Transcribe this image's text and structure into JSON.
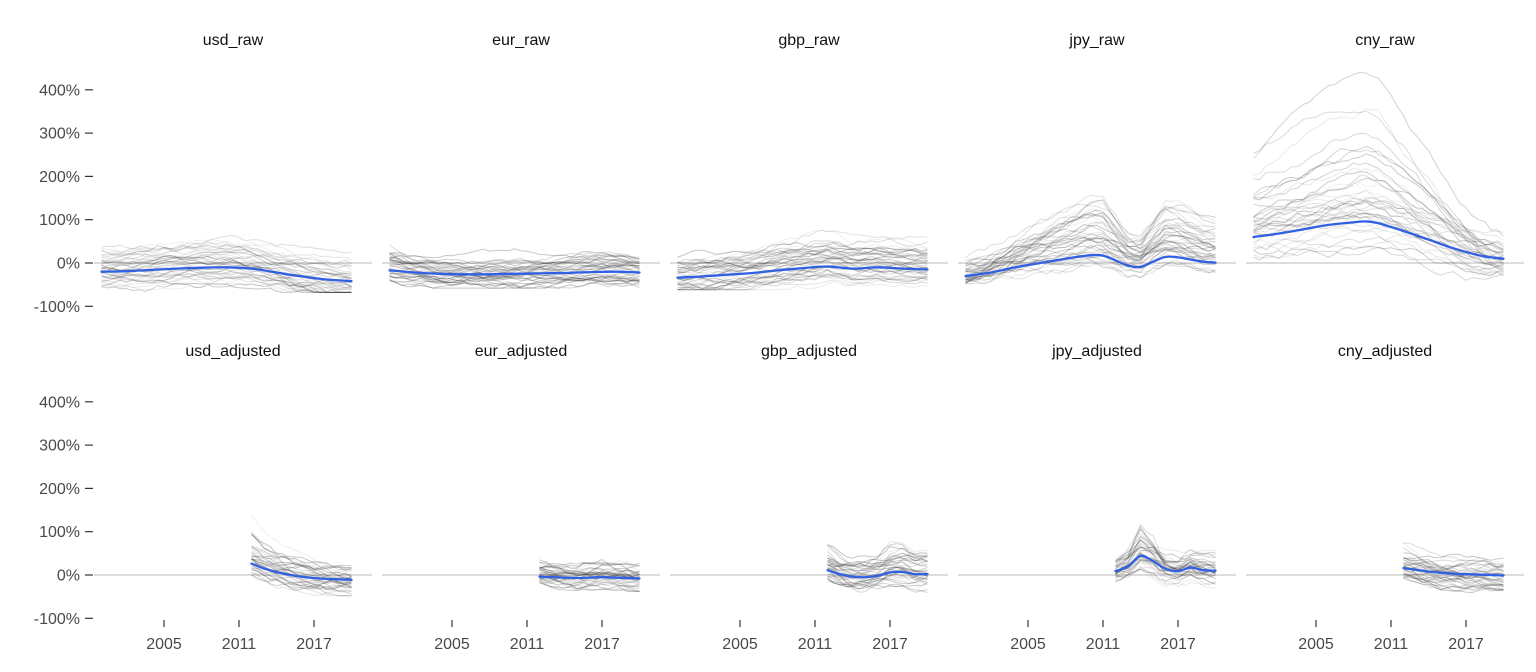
{
  "chart_data": {
    "type": "line",
    "description": "Faceted spaghetti line chart: 10 facets (2 rows x 5 cols), gray individual series with a blue trend line per facet, horizontal reference line at 0%",
    "layout": {
      "rows": 2,
      "cols": 5,
      "grid": "off",
      "legend": "none",
      "panel_background": "#ffffff"
    },
    "x_axis": {
      "domain": [
        1999.4,
        2021.6
      ],
      "ticks": [
        {
          "label": "2005",
          "year": 2005
        },
        {
          "label": "2011",
          "year": 2011
        },
        {
          "label": "2017",
          "year": 2017
        }
      ]
    },
    "y_axis": {
      "domain": [
        -104,
        462
      ],
      "unit": "%",
      "ticks": [
        {
          "label": "400%",
          "value": 400
        },
        {
          "label": "300%",
          "value": 300
        },
        {
          "label": "200%",
          "value": 200
        },
        {
          "label": "100%",
          "value": 100
        },
        {
          "label": "0%",
          "value": 0
        },
        {
          "label": "-100%",
          "value": -100
        }
      ]
    },
    "reference_line_y": 0,
    "colors": {
      "trend": "#3160E3",
      "background_lines": "#2e2e2e",
      "zero_line": "#c8c8c8",
      "axis_text": "#4a4a4a",
      "tick_mark": "#333333",
      "strip_text": "#111111"
    },
    "facets": [
      {
        "label": "usd_raw",
        "row": 0,
        "col": 0,
        "start_year": 2000,
        "end_year": 2020,
        "seed": 1077,
        "trend": [
          [
            2000,
            -20
          ],
          [
            2002,
            -19
          ],
          [
            2004,
            -16
          ],
          [
            2006,
            -13
          ],
          [
            2008,
            -11
          ],
          [
            2010,
            -10
          ],
          [
            2012,
            -13
          ],
          [
            2014,
            -22
          ],
          [
            2016,
            -31
          ],
          [
            2018,
            -38
          ],
          [
            2020,
            -42
          ]
        ],
        "band": {
          "n_lines": 40,
          "offset": 36,
          "uplift_max": 95,
          "wiggle": 7,
          "low_clamp": -68,
          "high_clamp": 134
        }
      },
      {
        "label": "eur_raw",
        "row": 0,
        "col": 1,
        "start_year": 2000,
        "end_year": 2020,
        "seed": 2154,
        "trend": [
          [
            2000,
            -17
          ],
          [
            2002,
            -22
          ],
          [
            2004,
            -25
          ],
          [
            2006,
            -26
          ],
          [
            2008,
            -26
          ],
          [
            2010,
            -25
          ],
          [
            2012,
            -24
          ],
          [
            2014,
            -23
          ],
          [
            2016,
            -21
          ],
          [
            2018,
            -20
          ],
          [
            2020,
            -22
          ]
        ],
        "band": {
          "n_lines": 40,
          "offset": 30,
          "uplift_max": 55,
          "wiggle": 6,
          "low_clamp": -58,
          "high_clamp": 74
        }
      },
      {
        "label": "gbp_raw",
        "row": 0,
        "col": 2,
        "start_year": 2000,
        "end_year": 2020,
        "seed": 3231,
        "trend": [
          [
            2000,
            -34
          ],
          [
            2002,
            -31
          ],
          [
            2004,
            -27
          ],
          [
            2006,
            -23
          ],
          [
            2008,
            -17
          ],
          [
            2010,
            -12
          ],
          [
            2012,
            -8
          ],
          [
            2014,
            -13
          ],
          [
            2016,
            -10
          ],
          [
            2018,
            -13
          ],
          [
            2020,
            -15
          ]
        ],
        "band": {
          "n_lines": 40,
          "offset": 32,
          "uplift_max": 85,
          "wiggle": 7,
          "low_clamp": -62,
          "high_clamp": 108
        }
      },
      {
        "label": "jpy_raw",
        "row": 0,
        "col": 3,
        "start_year": 2000,
        "end_year": 2020,
        "seed": 4308,
        "trend": [
          [
            2000,
            -30
          ],
          [
            2002,
            -22
          ],
          [
            2004,
            -10
          ],
          [
            2006,
            0
          ],
          [
            2008,
            10
          ],
          [
            2010,
            18
          ],
          [
            2011,
            17
          ],
          [
            2012,
            6
          ],
          [
            2013,
            -6
          ],
          [
            2014,
            -9
          ],
          [
            2015,
            3
          ],
          [
            2016,
            14
          ],
          [
            2017,
            13
          ],
          [
            2018,
            8
          ],
          [
            2019,
            3
          ],
          [
            2020,
            1
          ]
        ],
        "band": {
          "n_lines": 40,
          "offset": 28,
          "uplift_max": 165,
          "wiggle": 9,
          "low_clamp": -48,
          "high_clamp": 212
        }
      },
      {
        "label": "cny_raw",
        "row": 0,
        "col": 4,
        "start_year": 2000,
        "end_year": 2020,
        "seed": 5385,
        "trend": [
          [
            2000,
            60
          ],
          [
            2002,
            68
          ],
          [
            2004,
            78
          ],
          [
            2006,
            88
          ],
          [
            2008,
            94
          ],
          [
            2009,
            96
          ],
          [
            2010,
            92
          ],
          [
            2012,
            74
          ],
          [
            2014,
            54
          ],
          [
            2016,
            34
          ],
          [
            2018,
            18
          ],
          [
            2019,
            13
          ],
          [
            2020,
            10
          ]
        ],
        "band": {
          "n_lines": 40,
          "offset": 40,
          "uplift_max": 300,
          "wiggle": 10,
          "low_clamp": -62,
          "high_clamp": 442
        }
      },
      {
        "label": "usd_adjusted",
        "row": 1,
        "col": 0,
        "start_year": 2012,
        "end_year": 2020,
        "seed": 6462,
        "trend": [
          [
            2012,
            26
          ],
          [
            2013,
            15
          ],
          [
            2014,
            7
          ],
          [
            2015,
            1
          ],
          [
            2016,
            -4
          ],
          [
            2017,
            -7
          ],
          [
            2018,
            -9
          ],
          [
            2019,
            -10
          ],
          [
            2020,
            -11
          ]
        ],
        "band": {
          "n_lines": 40,
          "offset": 26,
          "uplift_max": 110,
          "wiggle": 8,
          "low_clamp": -48,
          "high_clamp": 148
        }
      },
      {
        "label": "eur_adjusted",
        "row": 1,
        "col": 1,
        "start_year": 2012,
        "end_year": 2020,
        "seed": 7539,
        "trend": [
          [
            2012,
            -4
          ],
          [
            2013,
            -5
          ],
          [
            2014,
            -6
          ],
          [
            2015,
            -7
          ],
          [
            2016,
            -6
          ],
          [
            2017,
            -5
          ],
          [
            2018,
            -6
          ],
          [
            2019,
            -7
          ],
          [
            2020,
            -8
          ]
        ],
        "band": {
          "n_lines": 40,
          "offset": 22,
          "uplift_max": 42,
          "wiggle": 7,
          "low_clamp": -38,
          "high_clamp": 54
        }
      },
      {
        "label": "gbp_adjusted",
        "row": 1,
        "col": 2,
        "start_year": 2012,
        "end_year": 2020,
        "seed": 8616,
        "trend": [
          [
            2012,
            11
          ],
          [
            2013,
            2
          ],
          [
            2014,
            -4
          ],
          [
            2015,
            -5
          ],
          [
            2016,
            -2
          ],
          [
            2017,
            6
          ],
          [
            2018,
            7
          ],
          [
            2019,
            2
          ],
          [
            2020,
            2
          ]
        ],
        "band": {
          "n_lines": 40,
          "offset": 24,
          "uplift_max": 58,
          "wiggle": 8,
          "low_clamp": -42,
          "high_clamp": 80
        }
      },
      {
        "label": "jpy_adjusted",
        "row": 1,
        "col": 3,
        "start_year": 2012,
        "end_year": 2020,
        "seed": 9693,
        "trend": [
          [
            2012,
            9
          ],
          [
            2013,
            20
          ],
          [
            2014,
            44
          ],
          [
            2015,
            32
          ],
          [
            2016,
            14
          ],
          [
            2017,
            9
          ],
          [
            2018,
            17
          ],
          [
            2019,
            11
          ],
          [
            2020,
            10
          ]
        ],
        "band": {
          "n_lines": 40,
          "offset": 26,
          "uplift_max": 85,
          "wiggle": 9,
          "low_clamp": -38,
          "high_clamp": 135
        }
      },
      {
        "label": "cny_adjusted",
        "row": 1,
        "col": 4,
        "start_year": 2012,
        "end_year": 2020,
        "seed": 10770,
        "trend": [
          [
            2012,
            16
          ],
          [
            2013,
            12
          ],
          [
            2014,
            8
          ],
          [
            2015,
            5
          ],
          [
            2016,
            3
          ],
          [
            2017,
            2
          ],
          [
            2018,
            1
          ],
          [
            2019,
            0
          ],
          [
            2020,
            -1
          ]
        ],
        "band": {
          "n_lines": 40,
          "offset": 24,
          "uplift_max": 78,
          "wiggle": 8,
          "low_clamp": -42,
          "high_clamp": 112
        }
      }
    ]
  }
}
